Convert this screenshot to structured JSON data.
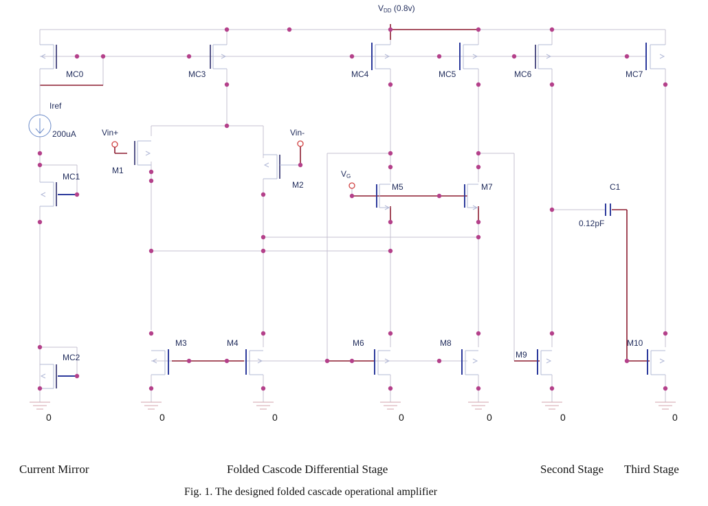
{
  "supply": {
    "label_main": "V",
    "label_sub": "DD",
    "label_value": " (0.8v)"
  },
  "sources": {
    "iref_name": "Iref",
    "iref_value": "200uA"
  },
  "inputs": {
    "vin_plus": "Vin+",
    "vin_minus": "Vin-",
    "vg_main": "V",
    "vg_sub": "G"
  },
  "transistors": {
    "mc0": "MC0",
    "mc1": "MC1",
    "mc2": "MC2",
    "mc3": "MC3",
    "mc4": "MC4",
    "mc5": "MC5",
    "mc6": "MC6",
    "mc7": "MC7",
    "m1": "M1",
    "m2": "M2",
    "m3": "M3",
    "m4": "M4",
    "m5": "M5",
    "m6": "M6",
    "m7": "M7",
    "m8": "M8",
    "m9": "M9",
    "m10": "M10"
  },
  "capacitor": {
    "name": "C1",
    "value": "0.12pF"
  },
  "grounds": {
    "label": "0"
  },
  "sections": {
    "current_mirror": "Current Mirror",
    "folded_cascode": "Folded Cascode Differential Stage",
    "second_stage": "Second Stage",
    "third_stage": "Third Stage"
  },
  "caption": "Fig. 1. The designed folded cascade operational amplifier"
}
